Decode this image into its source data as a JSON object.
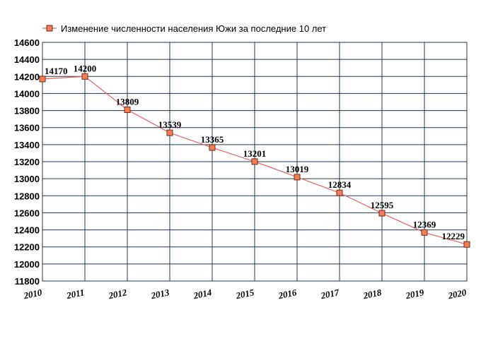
{
  "chart_data": {
    "type": "line",
    "title": "",
    "xlabel": "",
    "ylabel": "",
    "legend": {
      "entries": [
        "Изменение численности населения Южи за последние 10 лет"
      ],
      "placement": "top-left"
    },
    "x": [
      "2010",
      "2011",
      "2012",
      "2013",
      "2014",
      "2015",
      "2016",
      "2017",
      "2018",
      "2019",
      "2020"
    ],
    "yticks": [
      "11800",
      "12000",
      "12200",
      "12400",
      "12600",
      "12800",
      "13000",
      "13200",
      "13400",
      "13600",
      "13800",
      "14000",
      "14200",
      "14400",
      "14600"
    ],
    "ylim": [
      11800,
      14600
    ],
    "grid": true,
    "series": [
      {
        "name": "Изменение численности населения Южи за последние 10 лет",
        "x": [
          "2010",
          "2011",
          "2012",
          "2013",
          "2014",
          "2015",
          "2016",
          "2017",
          "2018",
          "2019",
          "2020"
        ],
        "values": [
          14170,
          14200,
          13809,
          13539,
          13365,
          13201,
          13019,
          12834,
          12595,
          12369,
          12229
        ],
        "data_labels": [
          "14170",
          "14200",
          "13809",
          "13539",
          "13365",
          "13201",
          "13019",
          "12834",
          "12595",
          "12369",
          "12229"
        ]
      }
    ],
    "colors": {
      "line": "#e8635a",
      "marker_fill": "#f07f58",
      "marker_stroke": "#7a2a10",
      "grid": "#1a3a5a",
      "axis": "#000000"
    }
  }
}
